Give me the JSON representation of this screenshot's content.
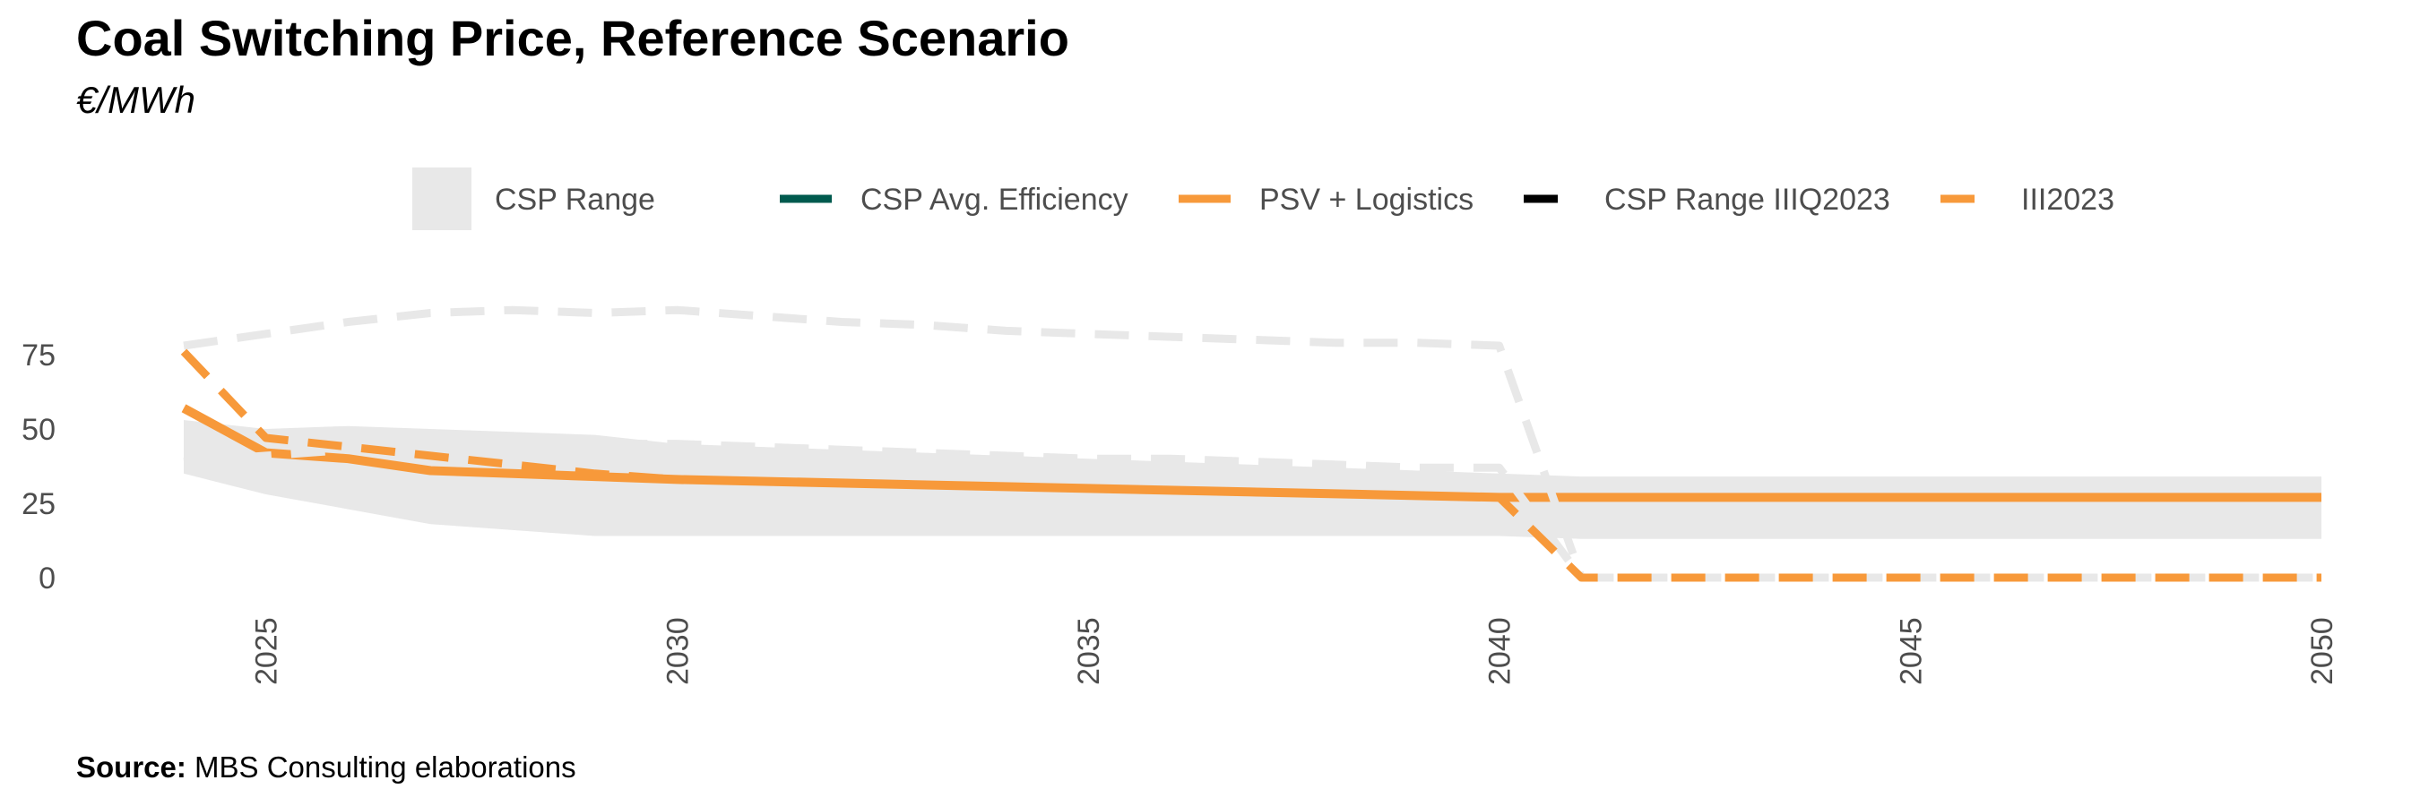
{
  "header": {
    "title": "Coal Switching Price, Reference Scenario",
    "subtitle": "€/MWh"
  },
  "footer": {
    "source_label": "Source:",
    "source_text": "MBS Consulting elaborations"
  },
  "colors": {
    "range_fill": "#e8e8e8",
    "avg_efficiency": "#005a4e",
    "orange": "#f7993a",
    "black": "#000000",
    "tick_text": "#4d4d4d"
  },
  "chart_data": {
    "type": "line",
    "title": "Coal Switching Price, Reference Scenario",
    "subtitle": "€/MWh",
    "xlim": [
      2024,
      2050
    ],
    "ylim": [
      0,
      100
    ],
    "x_ticks": [
      2025,
      2030,
      2035,
      2040,
      2045,
      2050
    ],
    "y_ticks": [
      0,
      25,
      50,
      75
    ],
    "grid": false,
    "legend_position": "top",
    "legend": [
      {
        "label": "CSP Range",
        "symbol": "area",
        "color": "#e8e8e8"
      },
      {
        "label": "CSP Avg. Efficiency",
        "symbol": "line",
        "color": "#005a4e"
      },
      {
        "label": "PSV + Logistics",
        "symbol": "line",
        "color": "#f7993a"
      },
      {
        "label": "CSP Range IIIQ2023",
        "symbol": "dashed-line",
        "color": "#000000"
      },
      {
        "label": "III2023",
        "symbol": "dashed-line",
        "color": "#f7993a"
      }
    ],
    "series": [
      {
        "name": "CSP Range",
        "type": "band",
        "x": [
          2024,
          2025,
          2026,
          2027,
          2028,
          2029,
          2030,
          2035,
          2040,
          2041,
          2045,
          2050
        ],
        "lower": [
          35,
          28,
          23,
          18,
          16,
          14,
          14,
          14,
          14,
          13,
          13,
          13
        ],
        "upper": [
          53,
          50,
          51,
          50,
          49,
          48,
          45,
          40,
          35,
          34,
          34,
          34
        ]
      },
      {
        "name": "PSV + Logistics",
        "type": "line",
        "dash": "solid",
        "x": [
          2024,
          2025,
          2026,
          2027,
          2028,
          2029,
          2030,
          2035,
          2040,
          2041,
          2045,
          2050
        ],
        "y": [
          57,
          42,
          40,
          36,
          35,
          34,
          33,
          30,
          27,
          27,
          27,
          27
        ]
      },
      {
        "name": "CSP Range IIIQ2023 (upper)",
        "type": "line",
        "dash": "dashed",
        "x": [
          2024,
          2025,
          2026,
          2027,
          2028,
          2029,
          2030,
          2031,
          2032,
          2033,
          2034,
          2035,
          2036,
          2037,
          2038,
          2039,
          2040,
          2041,
          2045,
          2050
        ],
        "y": [
          78,
          82,
          86,
          89,
          90,
          89,
          90,
          88,
          86,
          85,
          83,
          82,
          81,
          80,
          79,
          79,
          78,
          0,
          0,
          0
        ]
      },
      {
        "name": "CSP Range IIIQ2023 (lower)",
        "type": "line",
        "dash": "dashed",
        "x": [
          2024,
          2025,
          2026,
          2027,
          2028,
          2029,
          2030,
          2031,
          2032,
          2033,
          2034,
          2035,
          2036,
          2037,
          2038,
          2039,
          2040,
          2041,
          2045,
          2050
        ],
        "y": [
          39,
          41,
          43,
          44,
          45,
          45,
          45,
          44,
          43,
          42,
          41,
          40,
          40,
          39,
          38,
          37,
          37,
          0,
          0,
          0
        ]
      },
      {
        "name": "III2023",
        "type": "line",
        "dash": "dashed",
        "x": [
          2024,
          2025,
          2026,
          2027,
          2028,
          2029,
          2030,
          2035,
          2040,
          2041,
          2045,
          2050
        ],
        "y": [
          76,
          47,
          44,
          41,
          38,
          35,
          33,
          30,
          27,
          0,
          0,
          0
        ]
      }
    ]
  }
}
